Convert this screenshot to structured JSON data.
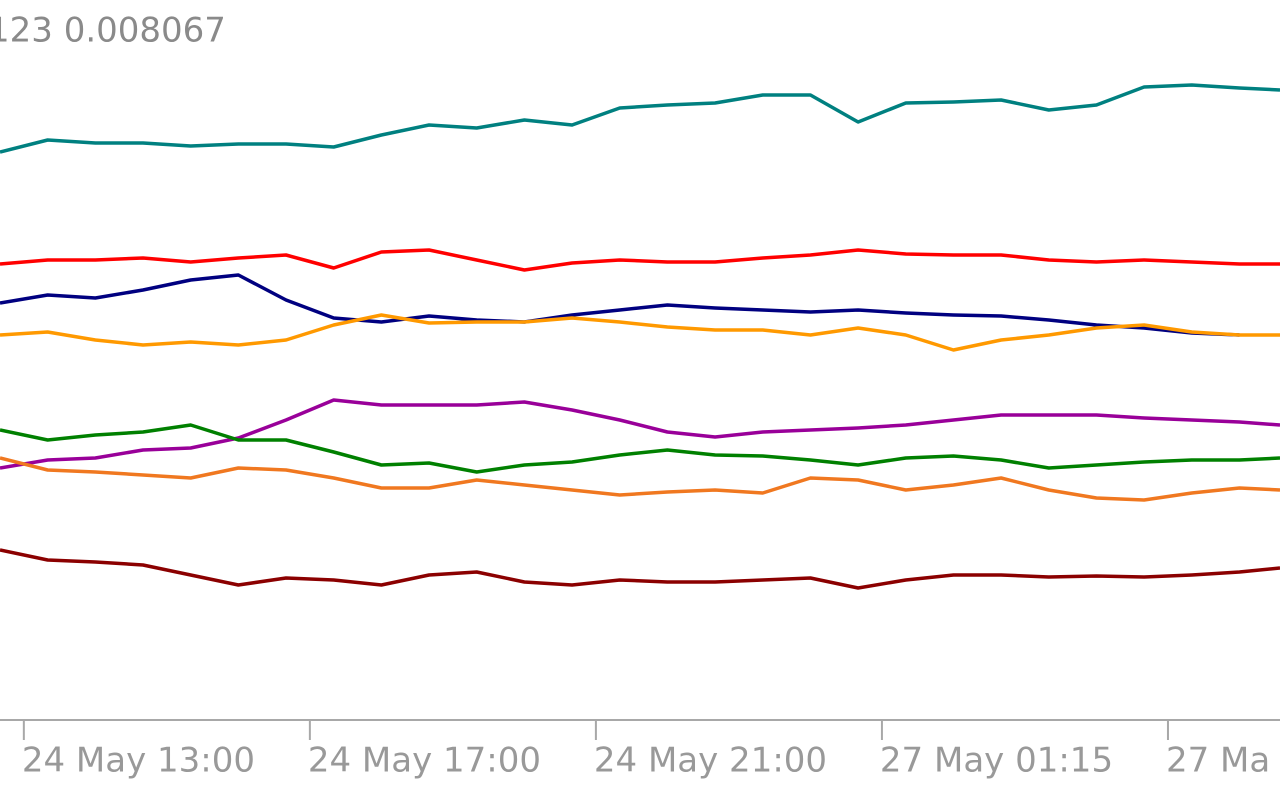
{
  "chart_data": {
    "type": "line",
    "title": "123 0.008067",
    "x": [
      0,
      2,
      4,
      6,
      8,
      10,
      12,
      14,
      16,
      18,
      20,
      22,
      24,
      26,
      28,
      30,
      32,
      34,
      36,
      38,
      40,
      42,
      44,
      46,
      48,
      50,
      52,
      53.7
    ],
    "xlim": [
      0,
      53.7
    ],
    "xticks": [
      {
        "value": 1,
        "label": "24 May 13:00"
      },
      {
        "value": 13,
        "label": "24 May 17:00"
      },
      {
        "value": 25,
        "label": "24 May 21:00"
      },
      {
        "value": 37,
        "label": "27 May 01:15"
      },
      {
        "value": 49,
        "label": "27 Ma"
      }
    ],
    "ylim": [
      0,
      720
    ],
    "series": [
      {
        "color": "#008080",
        "values": [
          568,
          580,
          577,
          577,
          574,
          576,
          576,
          573,
          585,
          595,
          592,
          600,
          595,
          612,
          615,
          617,
          625,
          625,
          598,
          617,
          618,
          620,
          610,
          615,
          633,
          635,
          632,
          630
        ]
      },
      {
        "color": "#ff0000",
        "values": [
          456,
          460,
          460,
          462,
          458,
          462,
          465,
          452,
          468,
          470,
          460,
          450,
          457,
          460,
          458,
          458,
          462,
          465,
          470,
          466,
          465,
          465,
          460,
          458,
          460,
          458,
          456,
          456
        ]
      },
      {
        "color": "#000080",
        "values": [
          417,
          425,
          422,
          430,
          440,
          445,
          420,
          402,
          398,
          404,
          400,
          398,
          405,
          410,
          415,
          412,
          410,
          408,
          410,
          407,
          405,
          404,
          400,
          395,
          392,
          387,
          385,
          null
        ]
      },
      {
        "color": "#ff9900",
        "values": [
          385,
          388,
          380,
          375,
          378,
          375,
          380,
          395,
          405,
          397,
          398,
          398,
          402,
          398,
          393,
          390,
          390,
          385,
          392,
          385,
          370,
          380,
          385,
          392,
          395,
          388,
          385,
          385
        ]
      },
      {
        "color": "#990099",
        "values": [
          252,
          260,
          262,
          270,
          272,
          282,
          300,
          320,
          315,
          315,
          315,
          318,
          310,
          300,
          288,
          283,
          288,
          290,
          292,
          295,
          300,
          305,
          305,
          305,
          302,
          300,
          298,
          295
        ]
      },
      {
        "color": "#008000",
        "values": [
          290,
          280,
          285,
          288,
          295,
          280,
          280,
          268,
          255,
          257,
          248,
          255,
          258,
          265,
          270,
          265,
          264,
          260,
          255,
          262,
          264,
          260,
          252,
          255,
          258,
          260,
          260,
          262
        ]
      },
      {
        "color": "#f07820",
        "values": [
          262,
          250,
          248,
          245,
          242,
          252,
          250,
          242,
          232,
          232,
          240,
          235,
          230,
          225,
          228,
          230,
          227,
          242,
          240,
          230,
          235,
          242,
          230,
          222,
          220,
          227,
          232,
          230
        ]
      },
      {
        "color": "#8b0000",
        "values": [
          170,
          160,
          158,
          155,
          145,
          135,
          142,
          140,
          135,
          145,
          148,
          138,
          135,
          140,
          138,
          138,
          140,
          142,
          132,
          140,
          145,
          145,
          143,
          144,
          143,
          145,
          148,
          152
        ]
      }
    ]
  }
}
